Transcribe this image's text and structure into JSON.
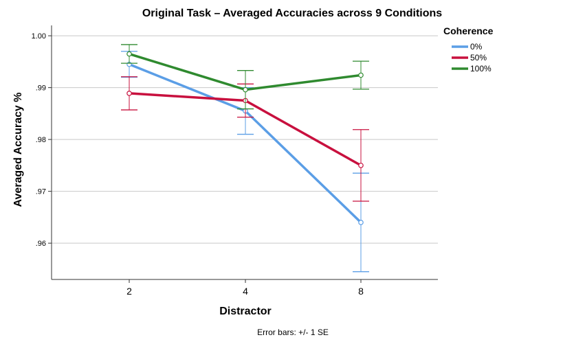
{
  "chart_data": {
    "type": "line",
    "title": "Original Task – Averaged Accuracies across 9 Conditions",
    "xlabel": "Distractor",
    "ylabel": "Averaged Accuracy %",
    "categories": [
      "2",
      "4",
      "8"
    ],
    "ylim": [
      0.953,
      1.002
    ],
    "yticks": [
      ".96",
      ".97",
      ".98",
      ".99",
      "1.00"
    ],
    "ytick_values": [
      0.96,
      0.97,
      0.98,
      0.99,
      1.0
    ],
    "grid": true,
    "legend": {
      "title": "Coherence",
      "position": "top-right"
    },
    "footnote": "Error bars: +/- 1 SE",
    "series": [
      {
        "name": "0%",
        "color": "#5b9ee6",
        "values": [
          0.9945,
          0.9855,
          0.964
        ],
        "se": [
          0.0025,
          0.0045,
          0.0095
        ]
      },
      {
        "name": "50%",
        "color": "#c8103e",
        "values": [
          0.9889,
          0.9875,
          0.975
        ],
        "se": [
          0.0032,
          0.0032,
          0.0069
        ]
      },
      {
        "name": "100%",
        "color": "#2f8a2f",
        "values": [
          0.9965,
          0.9896,
          0.9924
        ],
        "se": [
          0.0018,
          0.0037,
          0.0027
        ]
      }
    ]
  }
}
